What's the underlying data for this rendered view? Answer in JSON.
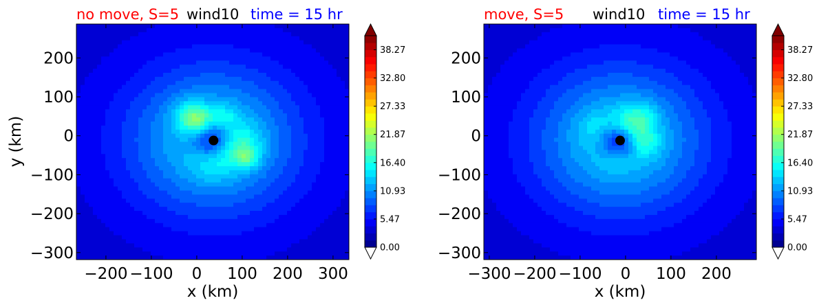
{
  "chart_data": [
    {
      "type": "contour",
      "title_left": "no move, S=5",
      "title_center": "wind10",
      "title_right": "time = 15 hr",
      "title_colors": {
        "left": "#ff0000",
        "center": "#000000",
        "right": "#0000ff"
      },
      "xlabel": "x (km)",
      "ylabel": "y (km)",
      "xlim": [
        -265,
        335
      ],
      "ylim": [
        -318,
        287
      ],
      "xticks": [
        -200,
        -100,
        0,
        100,
        200,
        300
      ],
      "xtick_labels": [
        "−200",
        "−100",
        "0",
        "100",
        "200",
        "300"
      ],
      "yticks": [
        -300,
        -200,
        -100,
        0,
        100,
        200
      ],
      "ytick_labels": [
        "−300",
        "−200",
        "−100",
        "0",
        "100",
        "200"
      ],
      "center_marker": {
        "x": 37,
        "y": -12
      },
      "features": [
        {
          "x": 37,
          "y": -12,
          "r": 45,
          "v": -9
        },
        {
          "x": 85,
          "y": -25,
          "r": 55,
          "v": 6
        },
        {
          "x": 110,
          "y": -55,
          "r": 25,
          "v": 5
        },
        {
          "x": 0,
          "y": 40,
          "r": 35,
          "v": 7
        },
        {
          "x": 60,
          "y": 50,
          "r": 30,
          "v": 3
        },
        {
          "x": -20,
          "y": 60,
          "r": 40,
          "v": 3
        },
        {
          "x": 30,
          "y": -80,
          "r": 45,
          "v": 2
        }
      ]
    },
    {
      "type": "contour",
      "title_left": "move, S=5",
      "title_center": "wind10",
      "title_right": "time = 15 hr",
      "title_colors": {
        "left": "#ff0000",
        "center": "#000000",
        "right": "#0000ff"
      },
      "xlabel": "x (km)",
      "ylabel": "",
      "xlim": [
        -312,
        288
      ],
      "ylim": [
        -318,
        287
      ],
      "xticks": [
        -300,
        -200,
        -100,
        0,
        100,
        200
      ],
      "xtick_labels": [
        "−300",
        "−200",
        "−100",
        "0",
        "100",
        "200"
      ],
      "yticks": [
        -300,
        -200,
        -100,
        0,
        100,
        200
      ],
      "ytick_labels": [
        "−300",
        "−200",
        "−100",
        "0",
        "100",
        "200"
      ],
      "center_marker": {
        "x": -12,
        "y": -12
      },
      "features": [
        {
          "x": -12,
          "y": -12,
          "r": 42,
          "v": -9
        },
        {
          "x": 15,
          "y": 25,
          "r": 45,
          "v": 6
        },
        {
          "x": 40,
          "y": -20,
          "r": 35,
          "v": 4
        },
        {
          "x": -70,
          "y": 20,
          "r": 40,
          "v": 2
        },
        {
          "x": 40,
          "y": 60,
          "r": 35,
          "v": 2
        },
        {
          "x": -20,
          "y": -60,
          "r": 40,
          "v": 1
        }
      ]
    }
  ],
  "colorbar": {
    "min": 0.0,
    "max": 41.0,
    "levels": 30,
    "extend": "both",
    "tick_values": [
      0.0,
      5.47,
      10.93,
      16.4,
      21.87,
      27.33,
      32.8,
      38.27
    ],
    "tick_labels": [
      "0.00",
      "5.47",
      "10.93",
      "16.40",
      "21.87",
      "27.33",
      "32.80",
      "38.27"
    ],
    "colormap": "jet"
  }
}
